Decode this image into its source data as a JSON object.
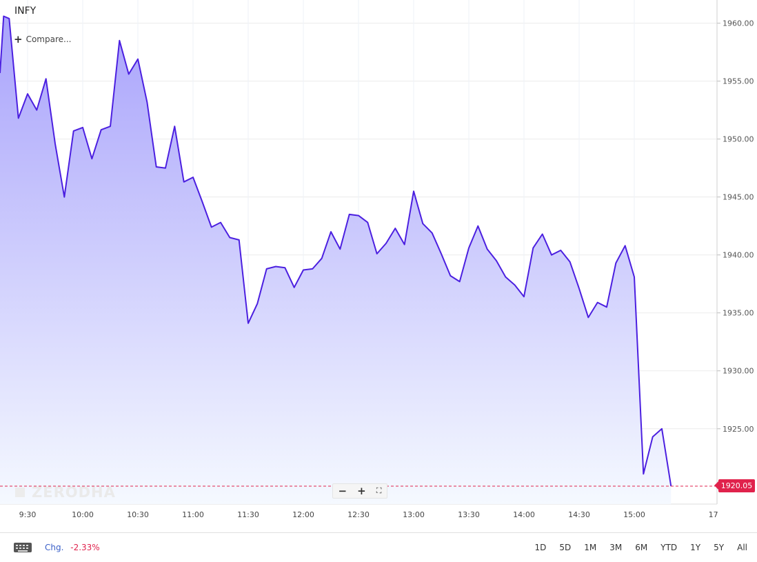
{
  "symbol": "INFY",
  "compare_label": "Compare...",
  "watermark": "ZERODHA",
  "current_price": "1920.05",
  "zoom": {
    "minus": "−",
    "plus": "+",
    "fullscreen": "⛶"
  },
  "footer": {
    "chg_label": "Chg.",
    "chg_value": "-2.33%",
    "ranges": [
      "1D",
      "5D",
      "1M",
      "3M",
      "6M",
      "YTD",
      "1Y",
      "5Y",
      "All"
    ]
  },
  "colors": {
    "line": "#4b1fe0",
    "fill_top": "#a9a3fb",
    "fill_bottom": "#f5f9ff",
    "price": "#e0224c"
  },
  "chart_data": {
    "type": "area",
    "x_tick_labels": [
      "9:30",
      "10:00",
      "10:30",
      "11:00",
      "11:30",
      "12:00",
      "12:30",
      "13:00",
      "13:30",
      "14:00",
      "14:30",
      "15:00",
      "17"
    ],
    "y_tick_labels": [
      "1960.00",
      "1955.00",
      "1950.00",
      "1945.00",
      "1940.00",
      "1935.00",
      "1930.00",
      "1925.00"
    ],
    "xlim": [
      "09:15",
      "15:45"
    ],
    "ylim": [
      1918.5,
      1962.0
    ],
    "grid": true,
    "series": [
      {
        "x": [
          "09:15",
          "09:17",
          "09:20",
          "09:25",
          "09:30",
          "09:35",
          "09:40",
          "09:45",
          "09:50",
          "09:55",
          "10:00",
          "10:05",
          "10:10",
          "10:15",
          "10:20",
          "10:25",
          "10:30",
          "10:35",
          "10:40",
          "10:45",
          "10:50",
          "10:55",
          "11:00",
          "11:05",
          "11:10",
          "11:15",
          "11:20",
          "11:25",
          "11:30",
          "11:35",
          "11:40",
          "11:45",
          "11:50",
          "11:55",
          "12:00",
          "12:05",
          "12:10",
          "12:15",
          "12:20",
          "12:25",
          "12:30",
          "12:35",
          "12:40",
          "12:45",
          "12:50",
          "12:55",
          "13:00",
          "13:05",
          "13:10",
          "13:15",
          "13:20",
          "13:25",
          "13:30",
          "13:35",
          "13:40",
          "13:45",
          "13:50",
          "13:55",
          "14:00",
          "14:05",
          "14:10",
          "14:15",
          "14:20",
          "14:25",
          "14:30",
          "14:35",
          "14:40",
          "14:45",
          "14:50",
          "14:55",
          "15:00",
          "15:05",
          "15:10",
          "15:15",
          "15:20"
        ],
        "y": [
          1955.7,
          1960.6,
          1960.4,
          1951.8,
          1953.9,
          1952.5,
          1955.2,
          1949.6,
          1945.0,
          1950.7,
          1951.0,
          1948.3,
          1950.8,
          1951.1,
          1958.5,
          1955.6,
          1956.9,
          1953.2,
          1947.6,
          1947.5,
          1951.1,
          1946.3,
          1946.7,
          1944.6,
          1942.4,
          1942.8,
          1941.5,
          1941.3,
          1934.1,
          1935.8,
          1938.8,
          1939.0,
          1938.9,
          1937.2,
          1938.7,
          1938.8,
          1939.7,
          1942.0,
          1940.5,
          1943.5,
          1943.4,
          1942.8,
          1940.1,
          1941.0,
          1942.3,
          1940.9,
          1945.5,
          1942.7,
          1941.9,
          1940.1,
          1938.2,
          1937.7,
          1940.6,
          1942.5,
          1940.5,
          1939.5,
          1938.1,
          1937.4,
          1936.4,
          1940.6,
          1941.8,
          1940.0,
          1940.4,
          1939.4,
          1937.1,
          1934.6,
          1935.9,
          1935.5,
          1939.3,
          1940.8,
          1938.1,
          1921.1,
          1924.3,
          1925.0,
          1920.05
        ]
      }
    ]
  }
}
